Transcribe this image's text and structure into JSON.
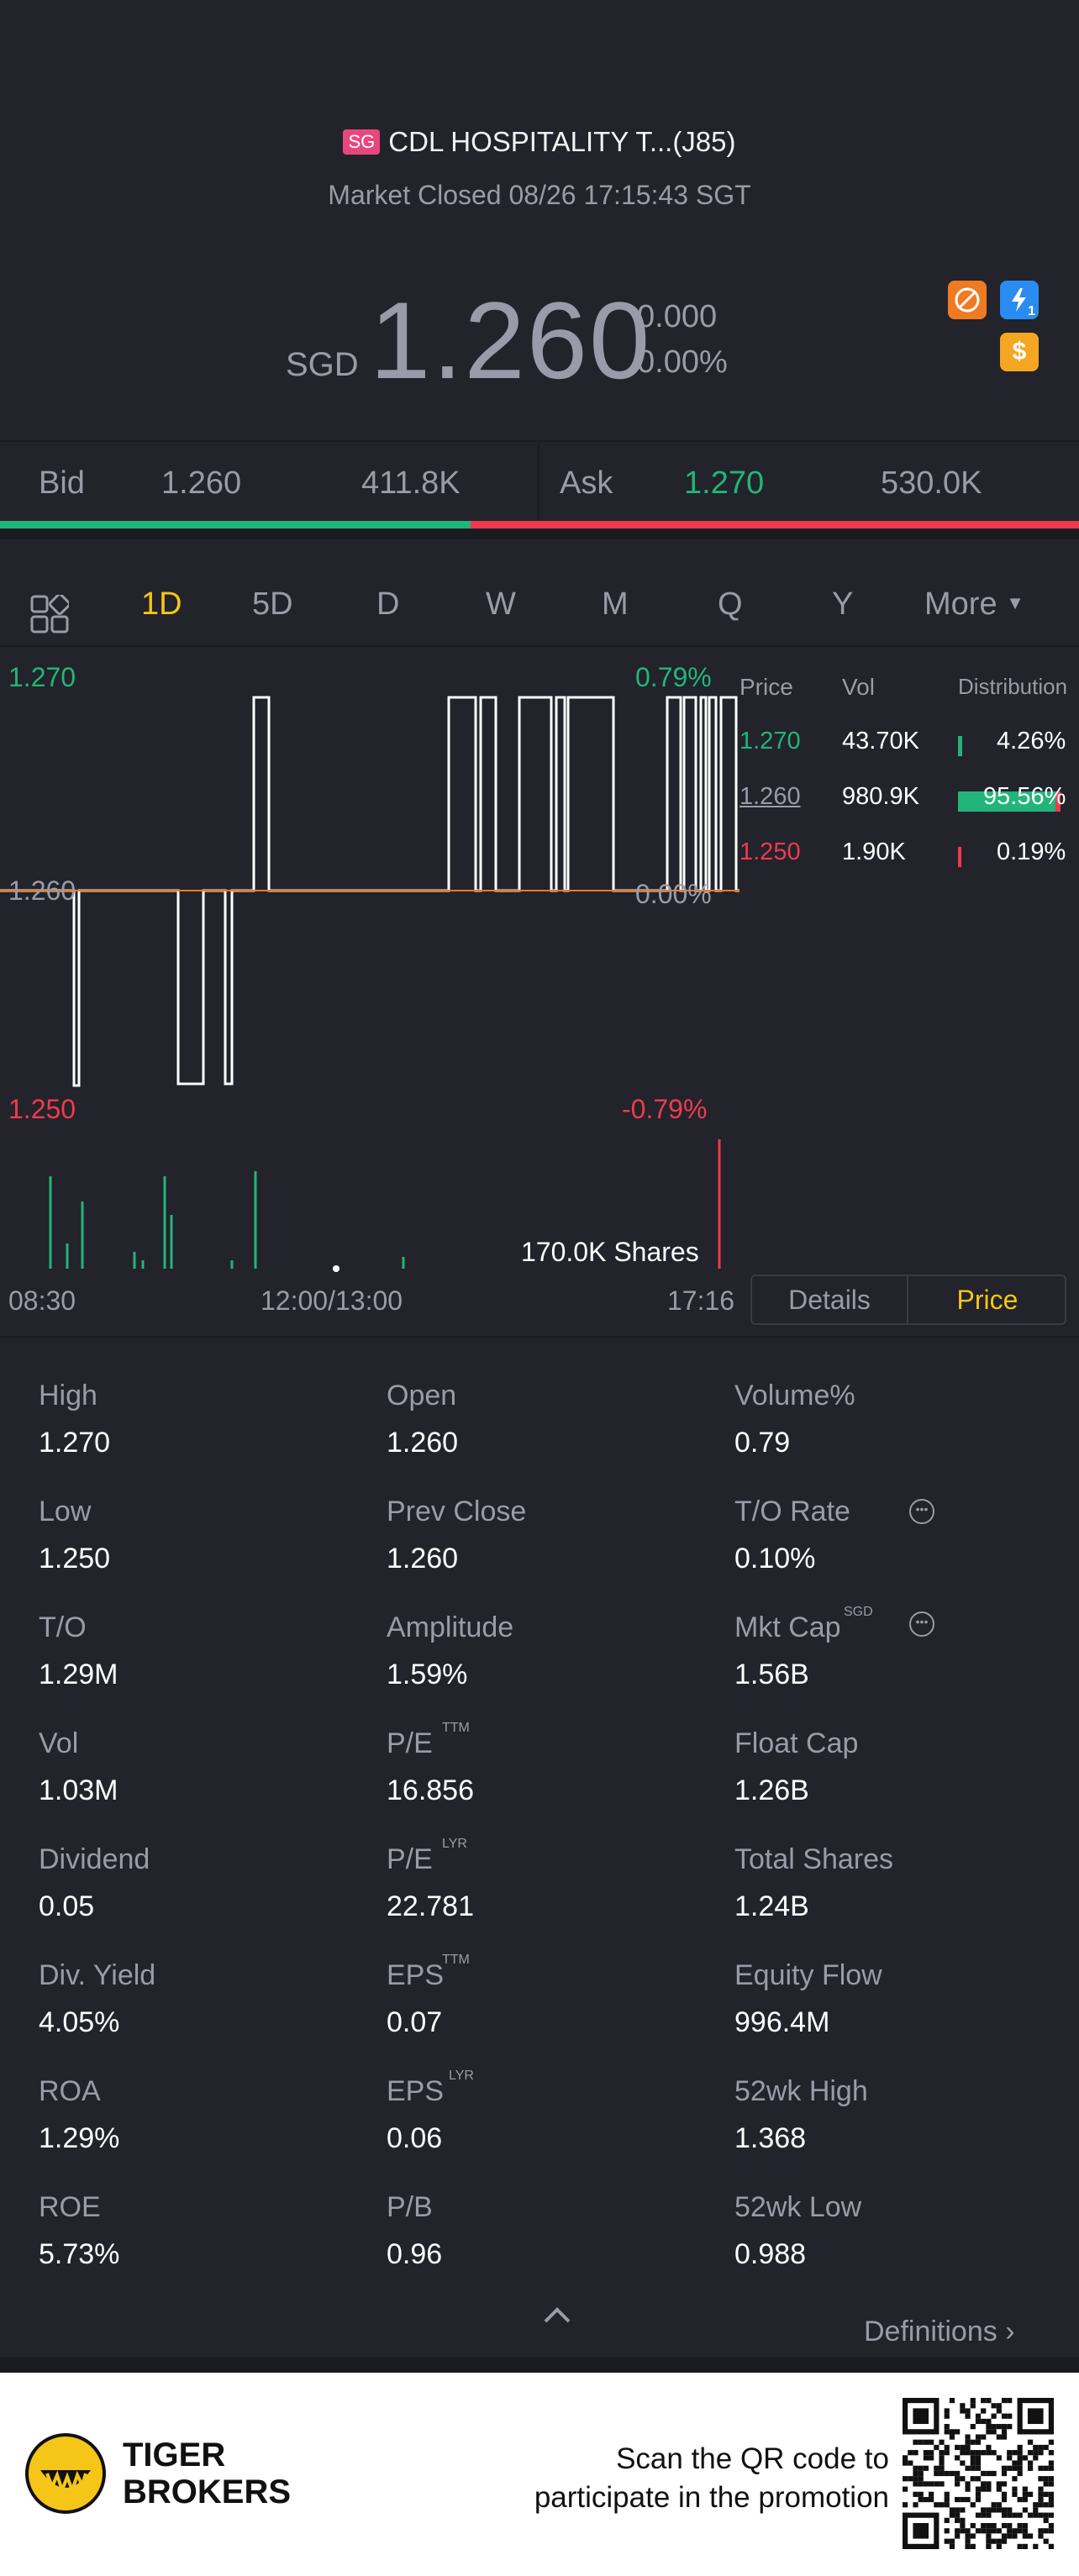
{
  "header": {
    "market_badge": "SG",
    "title": "CDL HOSPITALITY T...(J85)",
    "status": "Market Closed 08/26 17:15:43 SGT"
  },
  "quote": {
    "currency": "SGD",
    "price": "1.260",
    "change": "0.000",
    "change_pct": "0.00%"
  },
  "icons": {
    "no_short": "no-short-icon",
    "flash": "flash-icon",
    "dollar": "dollar-icon",
    "flash_badge": "1"
  },
  "bidask": {
    "bid_label": "Bid",
    "bid_price": "1.260",
    "bid_size": "411.8K",
    "ask_label": "Ask",
    "ask_price": "1.270",
    "ask_size": "530.0K",
    "bid_fraction": 0.436
  },
  "tabs": {
    "items": [
      "1D",
      "5D",
      "D",
      "W",
      "M",
      "Q",
      "Y",
      "More"
    ],
    "active": "1D"
  },
  "chart": {
    "y_high": "1.270",
    "y_mid": "1.260",
    "y_low": "1.250",
    "pct_high": "0.79%",
    "pct_mid": "0.00%",
    "pct_low": "-0.79%",
    "volume_label": "170.0K Shares",
    "time_start": "08:30",
    "time_mid": "12:00/13:00",
    "time_end": "17:16"
  },
  "distribution": {
    "header_price": "Price",
    "header_vol": "Vol",
    "header_dist": "Distribution",
    "rows": [
      {
        "price": "1.270",
        "vol": "43.70K",
        "pct": "4.26%",
        "fraction": 0.0426,
        "color": "#22b57a"
      },
      {
        "price": "1.260",
        "vol": "980.9K",
        "pct": "95.56%",
        "fraction": 0.9556,
        "color": "#9a9ba8"
      },
      {
        "price": "1.250",
        "vol": "1.90K",
        "pct": "0.19%",
        "fraction": 0.0019,
        "color": "#f03a4e"
      }
    ]
  },
  "toggle": {
    "details": "Details",
    "price": "Price"
  },
  "stats": [
    {
      "label": "High",
      "value": "1.270"
    },
    {
      "label": "Open",
      "value": "1.260"
    },
    {
      "label": "Volume%",
      "value": "0.79"
    },
    {
      "label": "Low",
      "value": "1.250"
    },
    {
      "label": "Prev Close",
      "value": "1.260"
    },
    {
      "label": "T/O Rate",
      "value": "0.10%"
    },
    {
      "label": "T/O",
      "value": "1.29M"
    },
    {
      "label": "Amplitude",
      "value": "1.59%"
    },
    {
      "label": "Mkt Cap",
      "value": "1.56B"
    },
    {
      "label": "Vol",
      "value": "1.03M"
    },
    {
      "label": "P/E",
      "value": "16.856"
    },
    {
      "label": "Float Cap",
      "value": "1.26B"
    },
    {
      "label": "Dividend",
      "value": "0.05"
    },
    {
      "label": "P/E",
      "value": "22.781"
    },
    {
      "label": "Total Shares",
      "value": "1.24B"
    },
    {
      "label": "Div. Yield",
      "value": "4.05%"
    },
    {
      "label": "EPS",
      "value": "0.07"
    },
    {
      "label": "Equity Flow",
      "value": "996.4M"
    },
    {
      "label": "ROA",
      "value": "1.29%"
    },
    {
      "label": "EPS",
      "value": "0.06"
    },
    {
      "label": "52wk High",
      "value": "1.368"
    },
    {
      "label": "ROE",
      "value": "5.73%"
    },
    {
      "label": "P/B",
      "value": "0.96"
    },
    {
      "label": "52wk Low",
      "value": "0.988"
    }
  ],
  "superscripts": {
    "ttm": "TTM",
    "lyr": "LYR",
    "sgd": "SGD"
  },
  "definitions": "Definitions",
  "footer": {
    "brand_line1": "TIGER",
    "brand_line2": "BROKERS",
    "promo_line1": "Scan the QR code to",
    "promo_line2": "participate in the promotion"
  },
  "colors": {
    "up": "#22b57a",
    "down": "#f03a4e",
    "accent": "#f5c518",
    "muted": "#9a9ba8",
    "background": "#22232b"
  }
}
